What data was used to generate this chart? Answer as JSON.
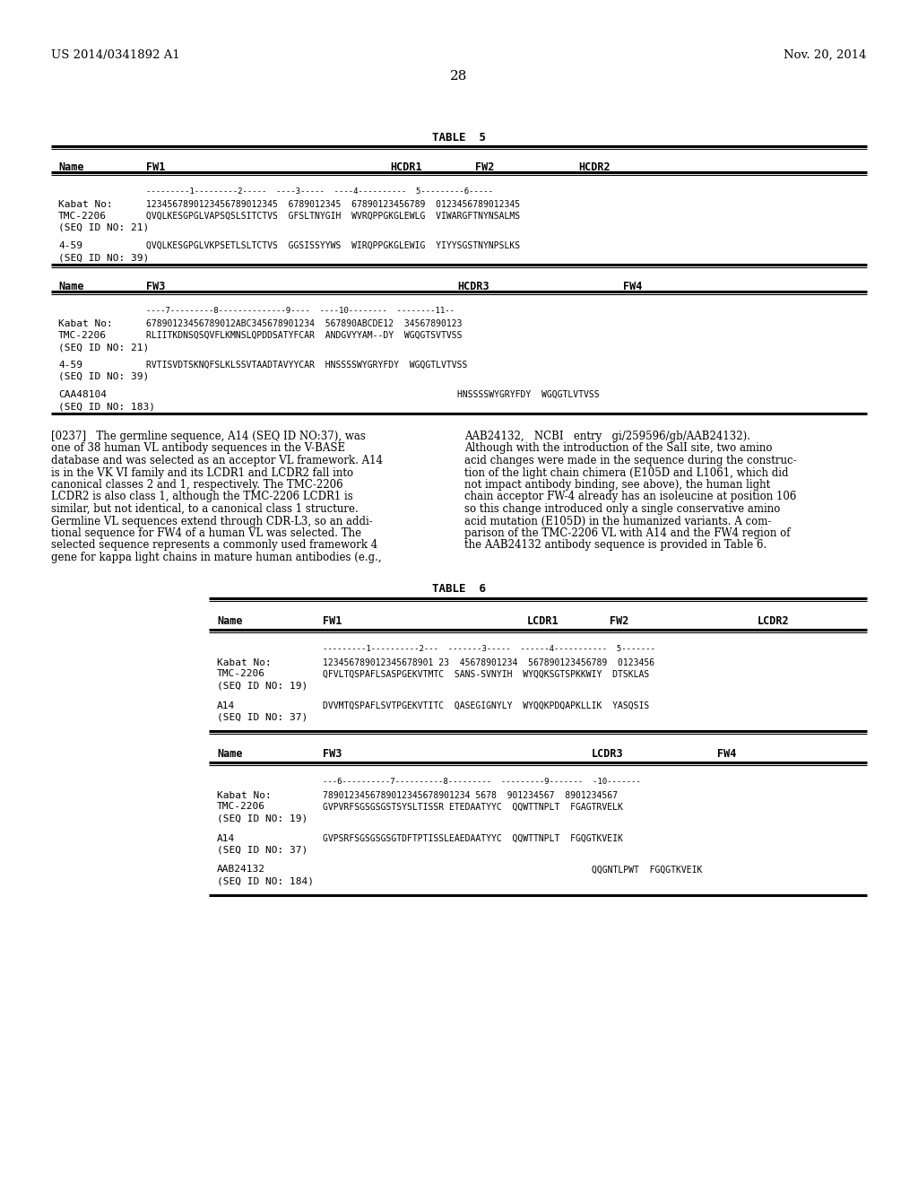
{
  "header_left": "US 2014/0341892 A1",
  "header_right": "Nov. 20, 2014",
  "page_number": "28",
  "bg_color": "#ffffff"
}
